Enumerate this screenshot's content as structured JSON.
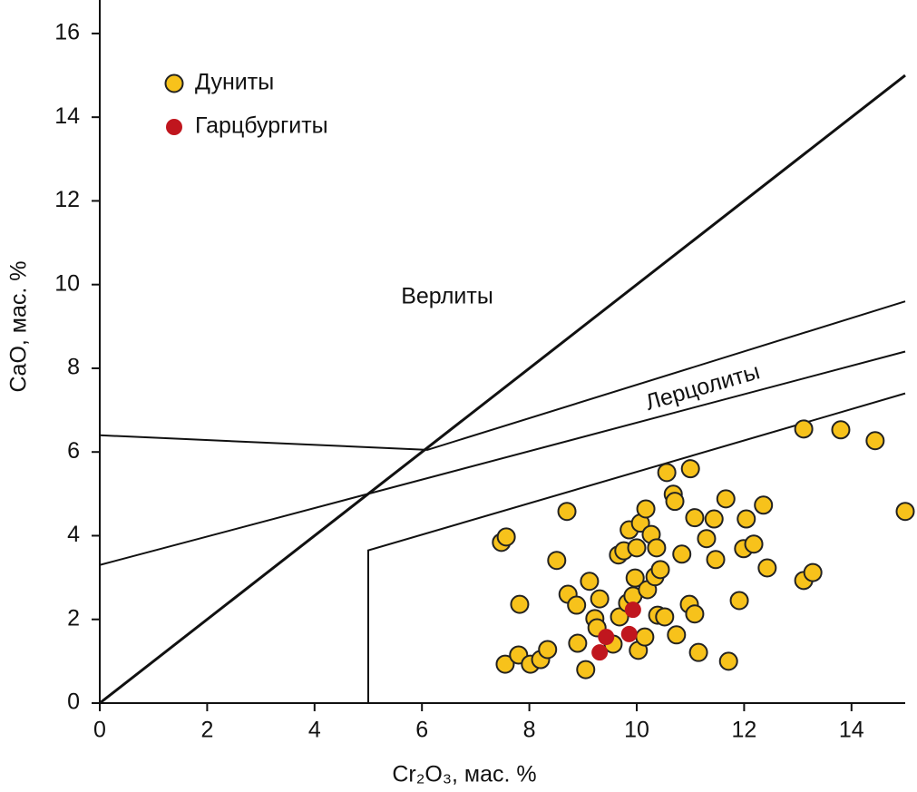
{
  "chart_data": {
    "type": "scatter",
    "x_label": "Cr₂O₃, мас. %",
    "y_label": "CaO, мас. %",
    "xlim": [
      0,
      15
    ],
    "ylim": [
      0,
      16.8
    ],
    "xticks": [
      0,
      2,
      4,
      6,
      8,
      10,
      12,
      14
    ],
    "yticks": [
      0,
      2,
      4,
      6,
      8,
      10,
      12,
      14,
      16
    ],
    "annotations": [
      "Верлиты",
      "Лерцолиты"
    ],
    "lines": [
      {
        "x": [
          0,
          15
        ],
        "y": [
          0,
          15
        ]
      },
      {
        "x": [
          0,
          6.1,
          15
        ],
        "y": [
          6.4,
          6.05,
          9.6
        ]
      },
      {
        "x": [
          0,
          15
        ],
        "y": [
          3.3,
          8.4
        ]
      },
      {
        "x": [
          5,
          5,
          15
        ],
        "y": [
          0,
          3.65,
          7.4
        ]
      }
    ],
    "series": [
      {
        "name": "Дуниты",
        "color": "#f7c21b",
        "x": [
          7.55,
          7.8,
          8.02,
          8.21,
          8.34,
          7.48,
          7.57,
          7.82,
          8.7,
          8.51,
          8.9,
          9.05,
          9.12,
          8.72,
          8.88,
          9.22,
          9.31,
          9.26,
          9.56,
          9.66,
          9.76,
          9.86,
          9.68,
          9.83,
          9.93,
          9.97,
          10.0,
          10.07,
          10.17,
          10.03,
          10.15,
          10.2,
          10.27,
          10.34,
          10.37,
          10.39,
          10.44,
          10.52,
          10.56,
          10.68,
          10.71,
          10.74,
          10.84,
          10.98,
          11.0,
          11.08,
          11.08,
          11.15,
          11.3,
          11.44,
          11.47,
          11.66,
          11.71,
          11.91,
          11.99,
          12.04,
          12.18,
          12.36,
          12.43,
          13.11,
          13.11,
          13.28,
          13.8,
          14.44,
          15.0
        ],
        "values": [
          0.93,
          1.15,
          0.93,
          1.04,
          1.28,
          3.84,
          3.97,
          2.36,
          4.58,
          3.41,
          1.43,
          0.8,
          2.91,
          2.6,
          2.34,
          2.02,
          2.49,
          1.8,
          1.41,
          3.54,
          3.64,
          4.14,
          2.06,
          2.39,
          2.56,
          2.99,
          3.71,
          4.3,
          4.64,
          1.26,
          1.58,
          2.71,
          4.03,
          3.02,
          3.71,
          2.1,
          3.19,
          2.06,
          5.51,
          4.99,
          4.82,
          1.63,
          3.56,
          2.36,
          5.6,
          4.43,
          2.13,
          1.21,
          3.93,
          4.4,
          3.43,
          4.88,
          1.0,
          2.45,
          3.69,
          4.4,
          3.8,
          4.73,
          3.23,
          6.55,
          2.93,
          3.12,
          6.53,
          6.27,
          4.58
        ]
      },
      {
        "name": "Гарцбургиты",
        "color": "#c0161e",
        "x": [
          9.93,
          9.43,
          9.86,
          9.31
        ],
        "values": [
          2.23,
          1.58,
          1.65,
          1.21
        ]
      }
    ]
  }
}
